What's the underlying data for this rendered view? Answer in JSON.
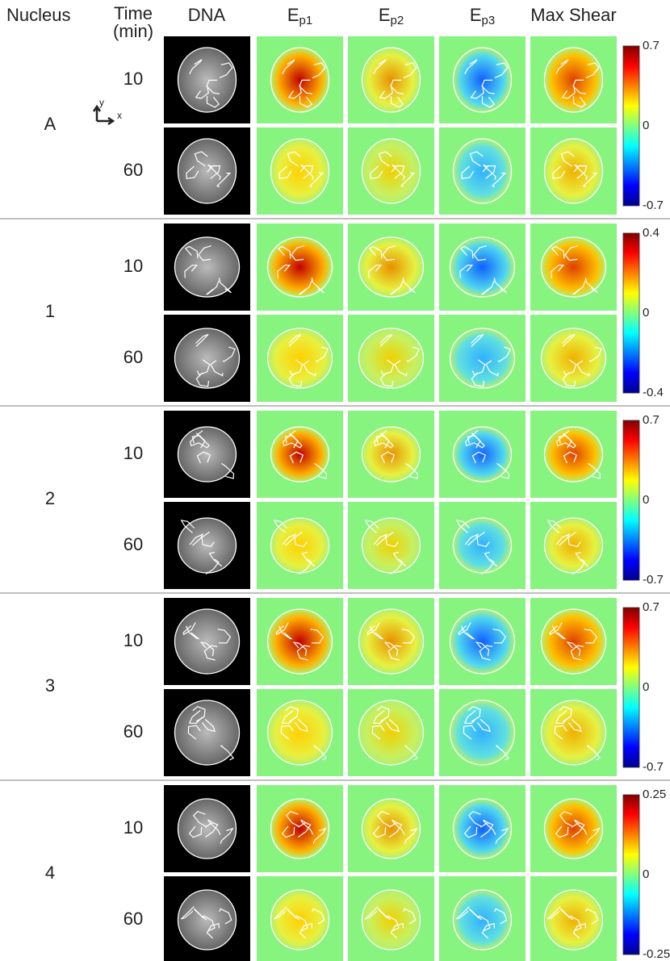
{
  "header": {
    "nucleus": "Nucleus",
    "time": "Time",
    "time_unit": "(min)",
    "dna": "DNA",
    "columns": [
      {
        "main": "E",
        "sub": "p1"
      },
      {
        "main": "E",
        "sub": "p2"
      },
      {
        "main": "E",
        "sub": "p3"
      },
      {
        "main": "Max Shear"
      }
    ]
  },
  "axes": {
    "y": "y",
    "x": "x"
  },
  "groups": [
    {
      "label": "A",
      "rows": [
        {
          "time": 10
        },
        {
          "time": 60
        }
      ],
      "colorbar": [
        0.7,
        0,
        -0.7
      ]
    },
    {
      "label": "1",
      "rows": [
        {
          "time": 10
        },
        {
          "time": 60
        }
      ],
      "colorbar": [
        0.4,
        0,
        -0.4
      ]
    },
    {
      "label": "2",
      "rows": [
        {
          "time": 10
        },
        {
          "time": 60
        }
      ],
      "colorbar": [
        0.7,
        0,
        -0.7
      ]
    },
    {
      "label": "3",
      "rows": [
        {
          "time": 10
        },
        {
          "time": 60
        }
      ],
      "colorbar": [
        0.7,
        0,
        -0.7
      ]
    },
    {
      "label": "4",
      "rows": [
        {
          "time": 10
        },
        {
          "time": 60
        }
      ],
      "colorbar": [
        0.25,
        0,
        -0.25
      ]
    }
  ]
}
